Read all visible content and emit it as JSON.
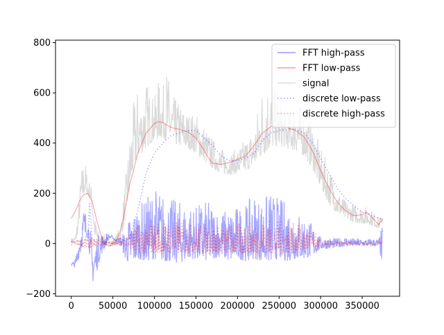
{
  "chart_data": {
    "type": "line",
    "title": "",
    "xlabel": "",
    "ylabel": "",
    "xlim": [
      -19000,
      395000
    ],
    "ylim": [
      -210,
      810
    ],
    "xticks": [
      0,
      50000,
      100000,
      150000,
      200000,
      250000,
      300000,
      350000
    ],
    "xtick_labels": [
      "0",
      "50000",
      "100000",
      "150000",
      "200000",
      "250000",
      "300000",
      "350000"
    ],
    "yticks": [
      -200,
      0,
      200,
      400,
      600,
      800
    ],
    "ytick_labels": [
      "−200",
      "0",
      "200",
      "400",
      "600",
      "800"
    ],
    "grid": false,
    "legend_position": "top-right",
    "series": [
      {
        "name": "FFT high-pass",
        "color": "#0000ff",
        "style": "solid",
        "opacity": 0.35,
        "envelope": {
          "x": [
            0,
            5000,
            10000,
            15000,
            20000,
            22000,
            25000,
            30000,
            35000,
            40000,
            45000,
            50000,
            55000,
            60000,
            65000,
            70000,
            80000,
            90000,
            100000,
            110000,
            120000,
            130000,
            140000,
            150000,
            160000,
            170000,
            180000,
            190000,
            200000,
            210000,
            220000,
            230000,
            240000,
            250000,
            260000,
            270000,
            280000,
            290000,
            300000,
            310000,
            320000,
            330000,
            340000,
            350000,
            360000,
            370000,
            375000
          ],
          "low": [
            -90,
            -95,
            -50,
            20,
            30,
            -40,
            -160,
            -120,
            -50,
            -20,
            20,
            20,
            0,
            -10,
            -60,
            -80,
            -60,
            -70,
            -60,
            -70,
            -70,
            -80,
            -60,
            -60,
            -70,
            -60,
            -50,
            -70,
            -60,
            -70,
            -60,
            -70,
            -70,
            -60,
            -70,
            -60,
            -60,
            -50,
            -20,
            -20,
            -15,
            -10,
            -10,
            -10,
            -10,
            -10,
            -100
          ],
          "high": [
            -75,
            -60,
            60,
            150,
            110,
            70,
            20,
            30,
            40,
            45,
            40,
            30,
            20,
            30,
            60,
            110,
            150,
            180,
            230,
            200,
            180,
            170,
            160,
            150,
            170,
            160,
            130,
            140,
            150,
            160,
            200,
            180,
            210,
            180,
            170,
            130,
            120,
            80,
            25,
            25,
            20,
            30,
            20,
            20,
            20,
            20,
            85
          ]
        }
      },
      {
        "name": "FFT low-pass",
        "color": "#ff0000",
        "style": "solid",
        "opacity": 0.35,
        "x": [
          0,
          5000,
          10000,
          15000,
          20000,
          25000,
          30000,
          35000,
          40000,
          45000,
          50000,
          55000,
          60000,
          65000,
          70000,
          80000,
          90000,
          100000,
          105000,
          110000,
          120000,
          130000,
          140000,
          150000,
          160000,
          165000,
          170000,
          180000,
          190000,
          200000,
          210000,
          220000,
          230000,
          240000,
          250000,
          260000,
          270000,
          280000,
          290000,
          300000,
          310000,
          320000,
          330000,
          340000,
          350000,
          355000,
          360000,
          370000,
          375000
        ],
        "y": [
          100,
          130,
          170,
          195,
          200,
          170,
          100,
          40,
          0,
          -10,
          -5,
          15,
          60,
          140,
          230,
          360,
          440,
          478,
          485,
          482,
          462,
          455,
          445,
          420,
          370,
          340,
          320,
          315,
          322,
          335,
          350,
          390,
          440,
          465,
          470,
          462,
          450,
          425,
          370,
          290,
          220,
          165,
          130,
          110,
          115,
          125,
          110,
          75,
          100
        ]
      },
      {
        "name": "signal",
        "color": "#bbbbbb",
        "style": "solid",
        "opacity": 0.55,
        "envelope": {
          "x": [
            0,
            5000,
            8000,
            12000,
            16000,
            20000,
            24000,
            28000,
            32000,
            36000,
            40000,
            45000,
            50000,
            55000,
            60000,
            65000,
            70000,
            75000,
            80000,
            85000,
            90000,
            95000,
            100000,
            105000,
            110000,
            115000,
            120000,
            125000,
            130000,
            140000,
            150000,
            160000,
            170000,
            180000,
            190000,
            200000,
            210000,
            220000,
            230000,
            240000,
            250000,
            260000,
            270000,
            280000,
            290000,
            300000,
            310000,
            320000,
            330000,
            340000,
            350000,
            360000,
            370000,
            375000
          ],
          "low": [
            5,
            10,
            40,
            160,
            200,
            190,
            170,
            30,
            10,
            0,
            -5,
            -10,
            -10,
            0,
            20,
            100,
            200,
            300,
            340,
            360,
            380,
            400,
            410,
            420,
            420,
            410,
            400,
            395,
            390,
            380,
            360,
            330,
            300,
            280,
            275,
            280,
            290,
            310,
            350,
            380,
            390,
            380,
            370,
            350,
            300,
            220,
            160,
            120,
            100,
            85,
            80,
            75,
            60,
            90
          ],
          "high": [
            20,
            30,
            120,
            300,
            340,
            260,
            230,
            110,
            50,
            40,
            35,
            20,
            20,
            40,
            100,
            250,
            420,
            560,
            620,
            570,
            660,
            600,
            580,
            650,
            620,
            700,
            600,
            580,
            560,
            520,
            520,
            470,
            420,
            380,
            360,
            380,
            420,
            460,
            640,
            650,
            590,
            520,
            580,
            530,
            480,
            380,
            310,
            220,
            170,
            155,
            150,
            140,
            105,
            105
          ]
        }
      },
      {
        "name": "discrete low-pass",
        "color": "#0000ff",
        "style": "dotted",
        "opacity": 0.35,
        "x": [
          0,
          10000,
          20000,
          22000,
          25000,
          30000,
          40000,
          50000,
          60000,
          70000,
          80000,
          90000,
          100000,
          110000,
          120000,
          130000,
          140000,
          150000,
          160000,
          170000,
          180000,
          190000,
          200000,
          210000,
          220000,
          230000,
          240000,
          250000,
          260000,
          270000,
          280000,
          290000,
          300000,
          310000,
          320000,
          330000,
          340000,
          350000,
          360000,
          370000,
          375000
        ],
        "y": [
          5,
          10,
          15,
          160,
          20,
          10,
          5,
          0,
          5,
          20,
          130,
          280,
          360,
          400,
          430,
          440,
          450,
          450,
          420,
          390,
          350,
          330,
          330,
          340,
          360,
          410,
          440,
          450,
          455,
          455,
          440,
          400,
          340,
          280,
          220,
          180,
          150,
          125,
          115,
          100,
          100
        ]
      },
      {
        "name": "discrete high-pass",
        "color": "#ff0000",
        "style": "dotted",
        "opacity": 0.35,
        "envelope": {
          "x": [
            0,
            10000,
            20000,
            30000,
            40000,
            50000,
            60000,
            70000,
            80000,
            90000,
            100000,
            120000,
            140000,
            160000,
            180000,
            200000,
            220000,
            240000,
            260000,
            280000,
            290000,
            300000,
            320000,
            340000,
            360000,
            375000
          ],
          "low": [
            -5,
            -10,
            -20,
            -10,
            -5,
            -5,
            -10,
            -20,
            -40,
            -40,
            -40,
            -40,
            -35,
            -40,
            -35,
            -40,
            -40,
            -40,
            -40,
            -30,
            -20,
            -10,
            -5,
            -5,
            -5,
            -5
          ],
          "high": [
            15,
            20,
            30,
            20,
            10,
            10,
            30,
            50,
            80,
            80,
            90,
            90,
            80,
            80,
            70,
            80,
            90,
            100,
            90,
            70,
            50,
            20,
            10,
            10,
            10,
            10
          ]
        }
      }
    ],
    "legend": [
      {
        "label": "FFT high-pass",
        "color": "#0000ff",
        "style": "solid"
      },
      {
        "label": "FFT low-pass",
        "color": "#ff0000",
        "style": "solid"
      },
      {
        "label": "signal",
        "color": "#aaaaaa",
        "style": "solid"
      },
      {
        "label": "discrete low-pass",
        "color": "#0000ff",
        "style": "dotted"
      },
      {
        "label": "discrete high-pass",
        "color": "#ff0000",
        "style": "dotted"
      }
    ]
  }
}
